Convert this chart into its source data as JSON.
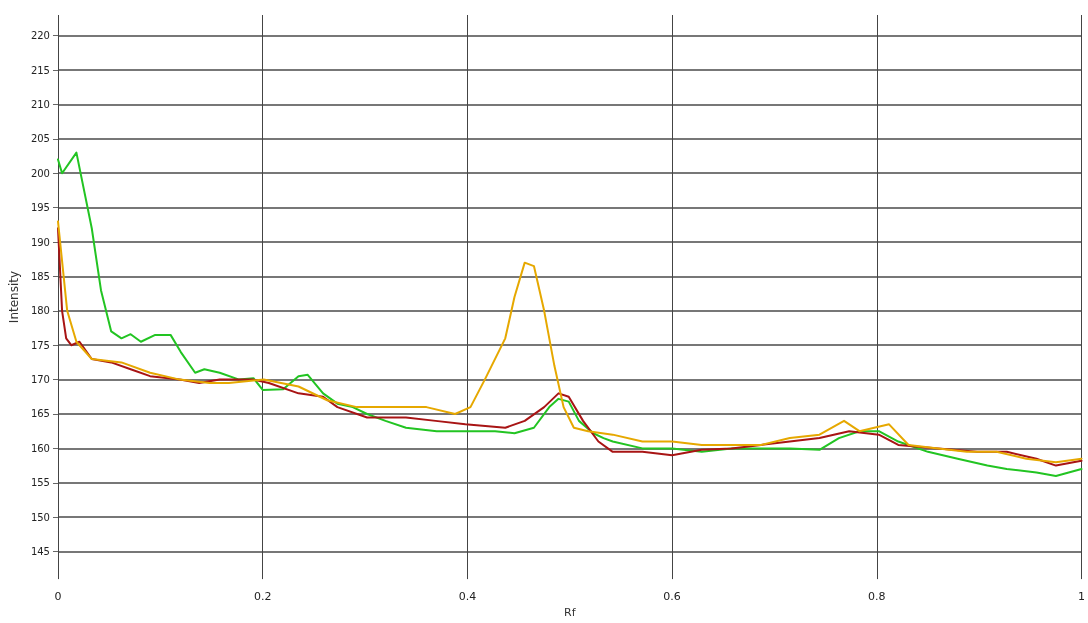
{
  "chart_data": {
    "type": "line",
    "xlabel": "Rf",
    "ylabel": "Intensity",
    "xlim": [
      0,
      1
    ],
    "xticks": [
      0,
      0.2,
      0.4,
      0.6,
      0.8,
      1
    ],
    "ylim": [
      141,
      223
    ],
    "yticks": [
      145,
      150,
      155,
      160,
      165,
      170,
      175,
      180,
      185,
      190,
      195,
      200,
      205,
      210,
      215,
      220
    ],
    "grid": true,
    "marker": "none",
    "line_style": "solid",
    "series": [
      {
        "color": "#22c422",
        "x": [
          0,
          0.004,
          0.018,
          0.033,
          0.042,
          0.052,
          0.062,
          0.071,
          0.081,
          0.095,
          0.11,
          0.12,
          0.134,
          0.143,
          0.158,
          0.177,
          0.191,
          0.2,
          0.22,
          0.235,
          0.244,
          0.259,
          0.273,
          0.288,
          0.302,
          0.32,
          0.34,
          0.37,
          0.4,
          0.427,
          0.446,
          0.465,
          0.48,
          0.489,
          0.499,
          0.509,
          0.523,
          0.533,
          0.542,
          0.571,
          0.6,
          0.629,
          0.658,
          0.687,
          0.715,
          0.744,
          0.763,
          0.783,
          0.802,
          0.821,
          0.85,
          0.879,
          0.908,
          0.927,
          0.956,
          0.975,
          1
        ],
        "values": [
          202,
          200,
          203,
          192,
          183,
          177,
          176,
          176.6,
          175.5,
          176.5,
          176.5,
          174,
          171,
          171.5,
          171,
          170,
          170.2,
          168.5,
          168.6,
          170.5,
          170.7,
          168,
          166.5,
          166,
          165,
          164,
          163,
          162.5,
          162.5,
          162.5,
          162.2,
          163,
          166,
          167.2,
          166.8,
          164,
          162.2,
          161.5,
          161,
          160,
          160,
          159.5,
          160,
          160,
          160,
          159.8,
          161.5,
          162.5,
          162.5,
          161,
          159.5,
          158.5,
          157.5,
          157,
          156.5,
          156,
          157
        ]
      },
      {
        "color": "#a81414",
        "x": [
          0,
          0.004,
          0.008,
          0.013,
          0.021,
          0.033,
          0.052,
          0.071,
          0.09,
          0.119,
          0.138,
          0.158,
          0.191,
          0.206,
          0.235,
          0.259,
          0.273,
          0.302,
          0.34,
          0.369,
          0.398,
          0.437,
          0.456,
          0.475,
          0.489,
          0.499,
          0.513,
          0.528,
          0.542,
          0.571,
          0.6,
          0.629,
          0.658,
          0.687,
          0.715,
          0.744,
          0.773,
          0.802,
          0.821,
          0.86,
          0.898,
          0.927,
          0.956,
          0.975,
          1
        ],
        "values": [
          192,
          180,
          176,
          175,
          175.5,
          173,
          172.5,
          171.5,
          170.5,
          170,
          169.5,
          170,
          170,
          169.5,
          168,
          167.5,
          166,
          164.5,
          164.5,
          164,
          163.5,
          163,
          164,
          166,
          168,
          167.5,
          164,
          161,
          159.5,
          159.5,
          159,
          159.8,
          160,
          160.5,
          161,
          161.5,
          162.5,
          162,
          160.5,
          160,
          159.5,
          159.5,
          158.5,
          157.5,
          158.2
        ]
      },
      {
        "color": "#e6a800",
        "x": [
          0,
          0.009,
          0.018,
          0.033,
          0.062,
          0.09,
          0.119,
          0.148,
          0.167,
          0.201,
          0.235,
          0.263,
          0.292,
          0.321,
          0.36,
          0.388,
          0.403,
          0.417,
          0.437,
          0.446,
          0.456,
          0.465,
          0.475,
          0.485,
          0.494,
          0.504,
          0.518,
          0.542,
          0.571,
          0.6,
          0.629,
          0.658,
          0.687,
          0.715,
          0.744,
          0.768,
          0.783,
          0.812,
          0.831,
          0.86,
          0.888,
          0.917,
          0.946,
          0.975,
          1
        ],
        "values": [
          193,
          180,
          175.5,
          173,
          172.5,
          171,
          170,
          169.5,
          169.5,
          170,
          169,
          167,
          166,
          166,
          166,
          165,
          166,
          170,
          176,
          182,
          187,
          186.5,
          180,
          172,
          166,
          163,
          162.5,
          162,
          161,
          161,
          160.5,
          160.5,
          160.5,
          161.5,
          162,
          164,
          162.5,
          163.5,
          160.5,
          160,
          159.5,
          159.5,
          158.5,
          158,
          158.5
        ]
      }
    ]
  }
}
